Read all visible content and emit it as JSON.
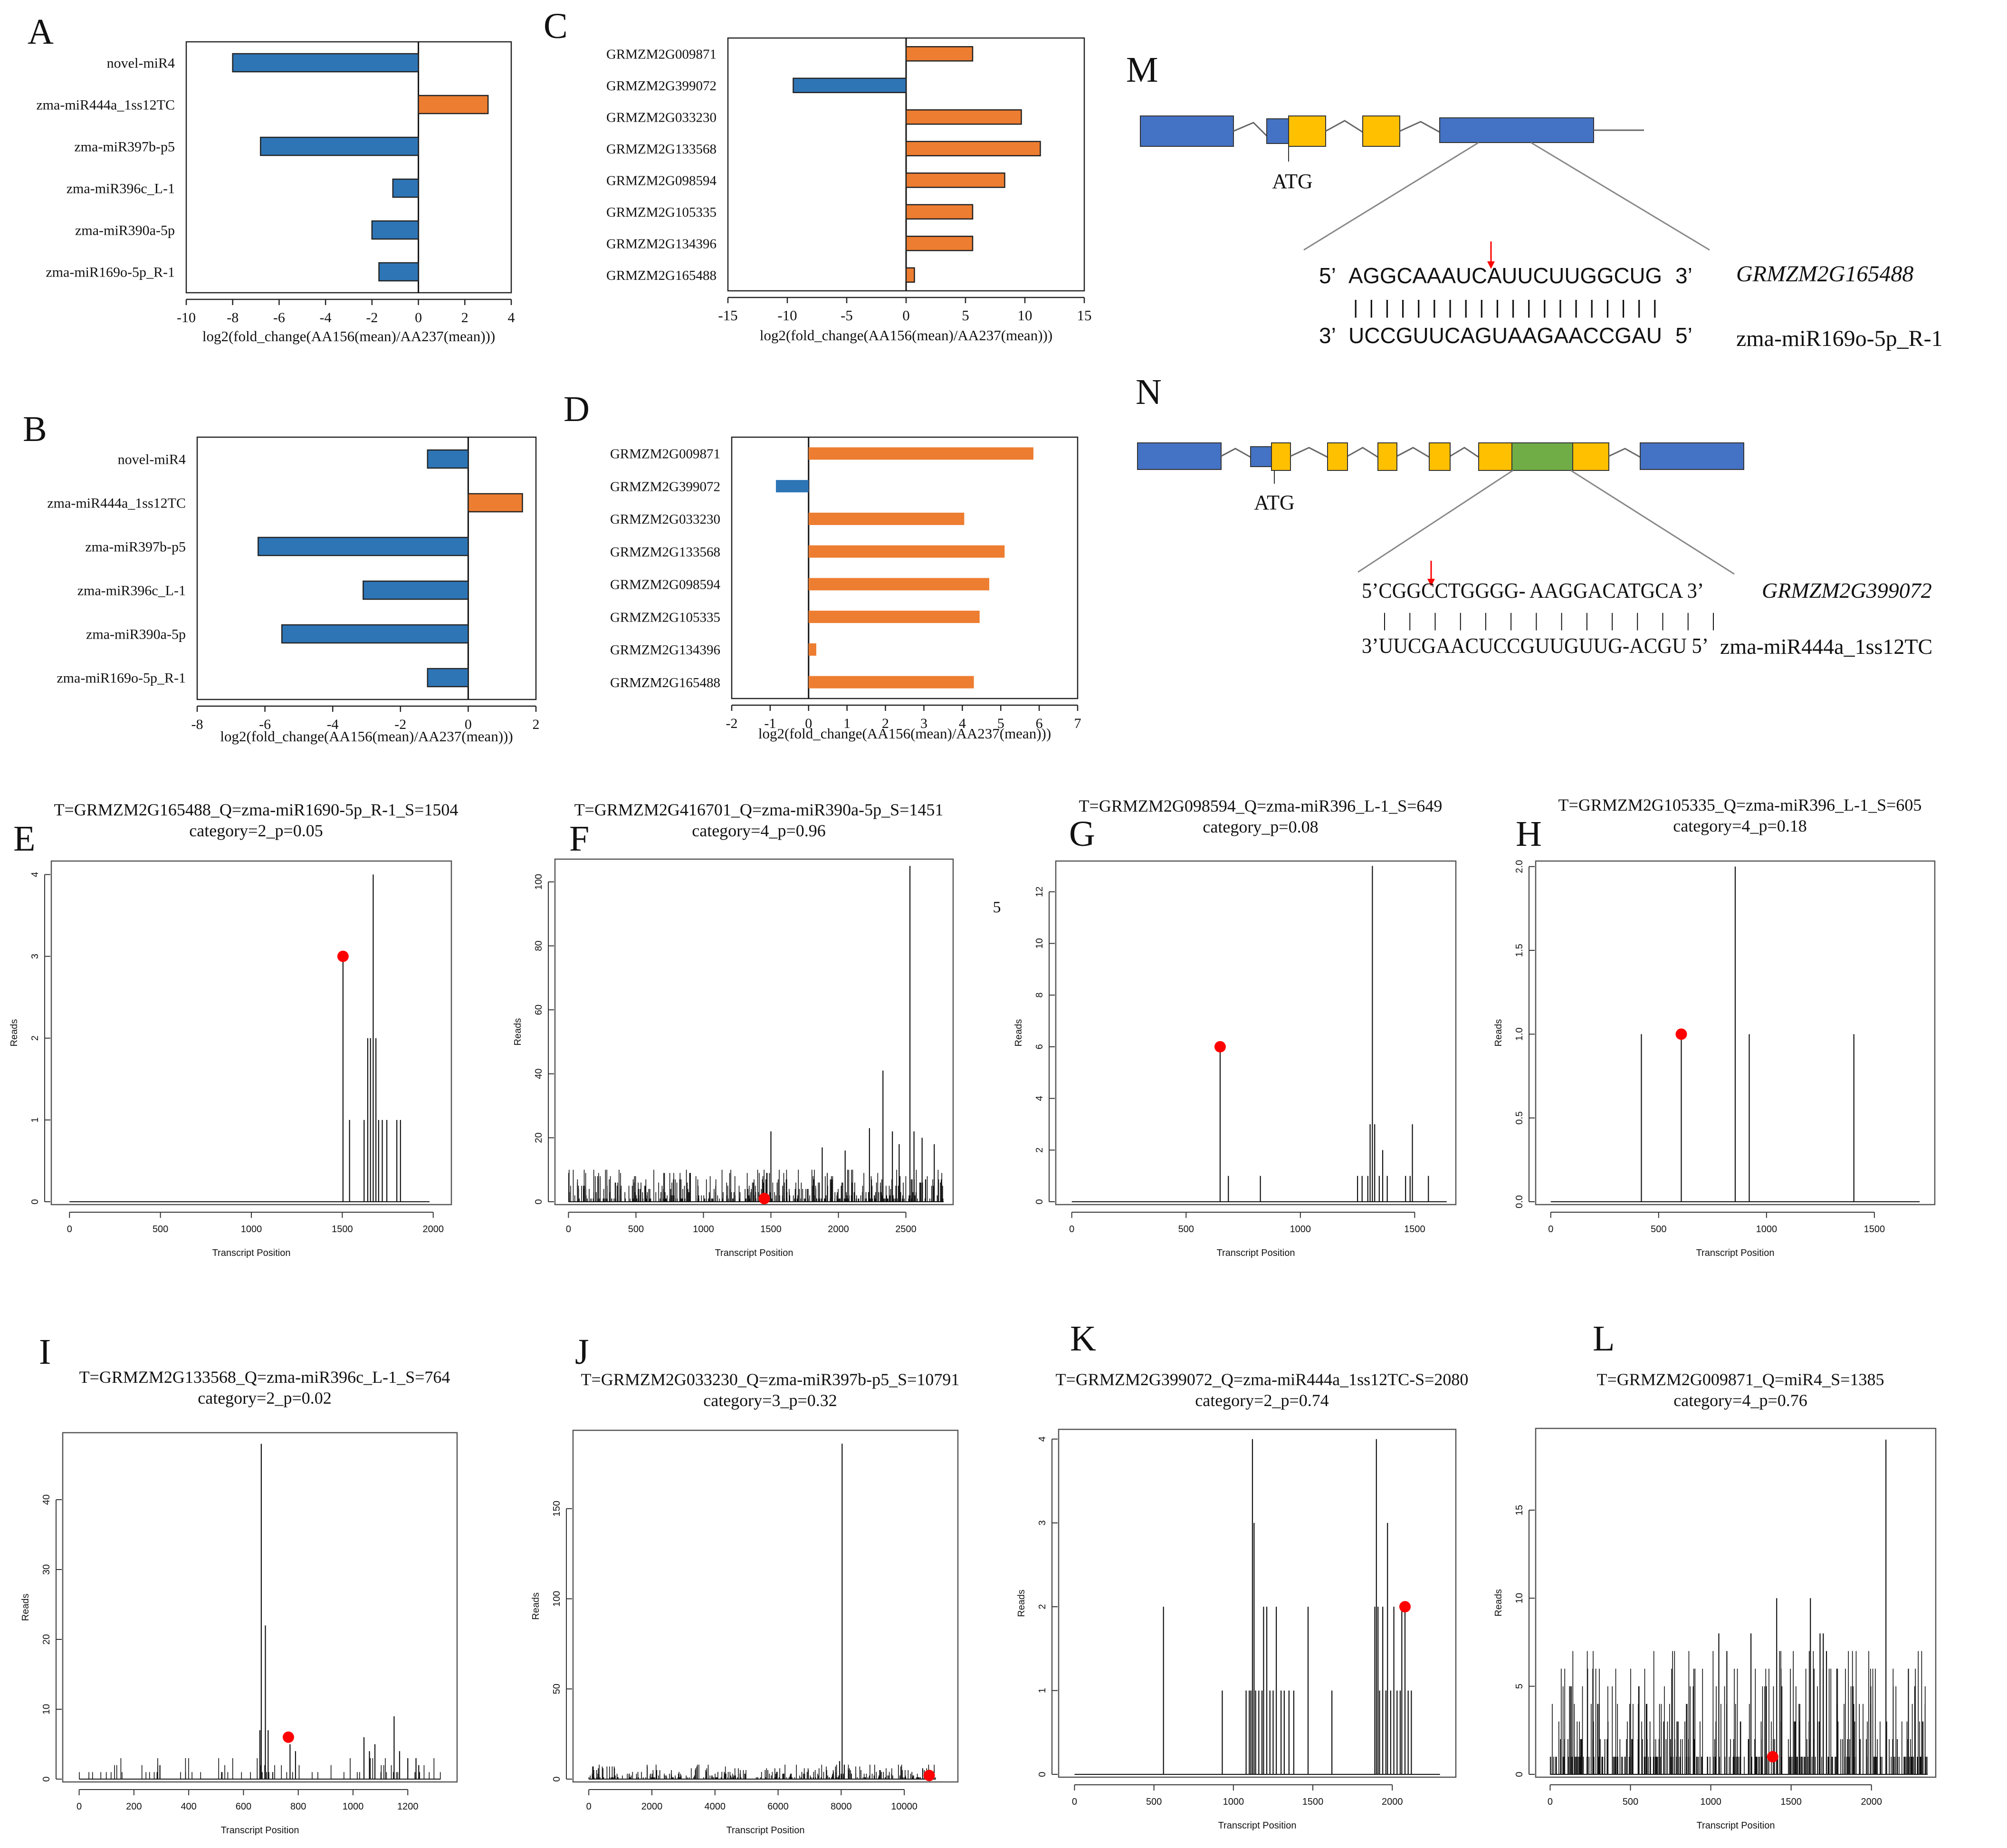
{
  "figure": {
    "bar_xlabel": "log2(fold_change(AA156(mean)/AA237(mean)))",
    "trace_xlabel": "Transcript Position",
    "trace_ylabel": "Reads",
    "stray_label": "5",
    "colors": {
      "up": "#ED7D31",
      "down": "#2E75B6",
      "exon_blue": "#4472C4",
      "exon_yellow": "#FFC000",
      "exon_green": "#70AD47",
      "mark": "#ff0000"
    }
  },
  "chart_data": [
    {
      "panel": "A",
      "type": "bar",
      "orientation": "horizontal",
      "categories": [
        "novel-miR4",
        "zma-miR444a_1ss12TC",
        "zma-miR397b-p5",
        "zma-miR396c_L-1",
        "zma-miR390a-5p",
        "zma-miR169o-5p_R-1"
      ],
      "values": [
        -8,
        3,
        -6.8,
        -1.1,
        -2,
        -1.7
      ],
      "xlim": [
        -10,
        4
      ],
      "ticks": [
        -10,
        -8,
        -6,
        -4,
        -2,
        0,
        2,
        4
      ],
      "xlabel": "log2(fold_change(AA156(mean)/AA237(mean)))",
      "outline": true
    },
    {
      "panel": "B",
      "type": "bar",
      "orientation": "horizontal",
      "categories": [
        "novel-miR4",
        "zma-miR444a_1ss12TC",
        "zma-miR397b-p5",
        "zma-miR396c_L-1",
        "zma-miR390a-5p",
        "zma-miR169o-5p_R-1"
      ],
      "values": [
        -1.2,
        1.6,
        -6.2,
        -3.1,
        -5.5,
        -1.2
      ],
      "xlim": [
        -8,
        2
      ],
      "ticks": [
        -8,
        -6,
        -4,
        -2,
        0,
        2
      ],
      "xlabel": "log2(fold_change(AA156(mean)/AA237(mean)))",
      "outline": true
    },
    {
      "panel": "C",
      "type": "bar",
      "orientation": "horizontal",
      "categories": [
        "GRMZM2G009871",
        "GRMZM2G399072",
        "GRMZM2G033230",
        "GRMZM2G133568",
        "GRMZM2G098594",
        "GRMZM2G105335",
        "GRMZM2G134396",
        "GRMZM2G165488"
      ],
      "values": [
        5.6,
        -9.5,
        9.7,
        11.3,
        8.3,
        5.6,
        5.6,
        0.7
      ],
      "xlim": [
        -15,
        15
      ],
      "ticks": [
        -15,
        -10,
        -5,
        0,
        5,
        10,
        15
      ],
      "xlabel": "log2(fold_change(AA156(mean)/AA237(mean)))",
      "outline": true
    },
    {
      "panel": "D",
      "type": "bar",
      "orientation": "horizontal",
      "categories": [
        "GRMZM2G009871",
        "GRMZM2G399072",
        "GRMZM2G033230",
        "GRMZM2G133568",
        "GRMZM2G098594",
        "GRMZM2G105335",
        "GRMZM2G134396",
        "GRMZM2G165488"
      ],
      "values": [
        5.85,
        -0.85,
        4.05,
        5.1,
        4.7,
        4.45,
        0.2,
        4.3
      ],
      "xlim": [
        -2,
        7
      ],
      "ticks": [
        -2,
        -1,
        0,
        1,
        2,
        3,
        4,
        5,
        6,
        7
      ],
      "xlabel": "log2(fold_change(AA156(mean)/AA237(mean)))",
      "outline": false
    },
    {
      "panel": "E",
      "type": "line",
      "title": "T=GRMZM2G165488_Q=zma-miR1690-5p_R-1_S=1504",
      "subtitle": "category=2_p=0.05",
      "xlabel": "Transcript Position",
      "ylabel": "Reads",
      "xlim": [
        -100,
        2100
      ],
      "ylim": [
        0,
        4.2
      ],
      "xticks": [
        0,
        500,
        1000,
        1500,
        2000
      ],
      "yticks": [
        0,
        1,
        2,
        3,
        4
      ],
      "length": 1980,
      "seed": 5,
      "noise_count": 0,
      "noise_max": 0,
      "peaks": [
        [
          1504,
          3
        ],
        [
          1540,
          1
        ],
        [
          1620,
          1
        ],
        [
          1640,
          2
        ],
        [
          1655,
          2
        ],
        [
          1670,
          4
        ],
        [
          1685,
          2
        ],
        [
          1700,
          1
        ],
        [
          1720,
          1
        ],
        [
          1745,
          1
        ],
        [
          1800,
          1
        ],
        [
          1820,
          1
        ]
      ],
      "mark": [
        1504,
        3
      ]
    },
    {
      "panel": "F",
      "type": "line",
      "title": "T=GRMZM2G416701_Q=zma-miR390a-5p_S=1451",
      "subtitle": "category=4_p=0.96",
      "xlabel": "Transcript Position",
      "ylabel": "Reads",
      "xlim": [
        -100,
        2850
      ],
      "ylim": [
        0,
        108
      ],
      "xticks": [
        0,
        500,
        1000,
        1500,
        2000,
        2500
      ],
      "yticks": [
        0,
        20,
        40,
        60,
        80,
        100
      ],
      "length": 2780,
      "seed": 11,
      "noise_count": 480,
      "noise_max": 10,
      "peaks": [
        [
          1500,
          22
        ],
        [
          1880,
          17
        ],
        [
          2050,
          16
        ],
        [
          2230,
          23
        ],
        [
          2330,
          41
        ],
        [
          2400,
          22
        ],
        [
          2450,
          18
        ],
        [
          2530,
          105
        ],
        [
          2560,
          22
        ],
        [
          2620,
          20
        ],
        [
          2710,
          18
        ]
      ],
      "mark": [
        1451,
        1
      ]
    },
    {
      "panel": "G",
      "type": "line",
      "title": "T=GRMZM2G098594_Q=zma-miR396_L-1_S=649",
      "subtitle": "category_p=0.08",
      "xlabel": "Transcript Position",
      "ylabel": "Reads",
      "xlim": [
        -70,
        1680
      ],
      "ylim": [
        0,
        13.3
      ],
      "xticks": [
        0,
        500,
        1000,
        1500
      ],
      "yticks": [
        0,
        2,
        4,
        6,
        8,
        10,
        12
      ],
      "length": 1640,
      "seed": 3,
      "noise_count": 0,
      "noise_max": 0,
      "peaks": [
        [
          649,
          6
        ],
        [
          685,
          1
        ],
        [
          825,
          1
        ],
        [
          1250,
          1
        ],
        [
          1270,
          1
        ],
        [
          1295,
          1
        ],
        [
          1305,
          3
        ],
        [
          1315,
          13
        ],
        [
          1325,
          3
        ],
        [
          1345,
          1
        ],
        [
          1360,
          2
        ],
        [
          1380,
          1
        ],
        [
          1460,
          1
        ],
        [
          1480,
          1
        ],
        [
          1490,
          3
        ],
        [
          1560,
          1
        ]
      ],
      "mark": [
        649,
        6
      ]
    },
    {
      "panel": "H",
      "type": "line",
      "title": "T=GRMZM2G105335_Q=zma-miR396_L-1_S=605",
      "subtitle": "category=4_p=0.18",
      "xlabel": "Transcript Position",
      "ylabel": "Reads",
      "xlim": [
        -70,
        1780
      ],
      "ylim": [
        0,
        2.05
      ],
      "xticks": [
        0,
        500,
        1000,
        1500
      ],
      "yticks": [
        0.0,
        0.5,
        1.0,
        1.5,
        2.0
      ],
      "length": 1710,
      "seed": 4,
      "noise_count": 0,
      "noise_max": 0,
      "peaks": [
        [
          420,
          1
        ],
        [
          605,
          1
        ],
        [
          855,
          2
        ],
        [
          920,
          1
        ],
        [
          1405,
          1
        ]
      ],
      "mark": [
        605,
        1
      ]
    },
    {
      "panel": "I",
      "type": "line",
      "title": "T=GRMZM2G133568_Q=zma-miR396c_L-1_S=764",
      "subtitle": "category=2_p=0.02",
      "xlabel": "Transcript Position",
      "ylabel": "Reads",
      "xlim": [
        -60,
        1380
      ],
      "ylim": [
        0,
        50
      ],
      "xticks": [
        0,
        200,
        400,
        600,
        800,
        1000,
        1200
      ],
      "yticks": [
        0,
        10,
        20,
        30,
        40
      ],
      "length": 1320,
      "seed": 7,
      "noise_count": 70,
      "noise_max": 3,
      "peaks": [
        [
          295,
          2
        ],
        [
          660,
          7
        ],
        [
          665,
          48
        ],
        [
          680,
          22
        ],
        [
          690,
          7
        ],
        [
          770,
          5
        ],
        [
          790,
          4
        ],
        [
          1040,
          6
        ],
        [
          1060,
          4
        ],
        [
          1080,
          5
        ],
        [
          1150,
          9
        ],
        [
          1170,
          4
        ],
        [
          1200,
          3
        ],
        [
          1230,
          3
        ],
        [
          1240,
          2
        ]
      ],
      "mark": [
        764,
        6
      ]
    },
    {
      "panel": "J",
      "type": "line",
      "title": "T=GRMZM2G033230_Q=zma-miR397b-p5_S=10791",
      "subtitle": "category=3_p=0.32",
      "xlabel": "Transcript Position",
      "ylabel": "Reads",
      "xlim": [
        -500,
        11700
      ],
      "ylim": [
        0,
        195
      ],
      "xticks": [
        0,
        2000,
        4000,
        6000,
        8000,
        10000
      ],
      "yticks": [
        0,
        50,
        100,
        150
      ],
      "length": 11000,
      "seed": 9,
      "noise_count": 330,
      "noise_max": 8,
      "peaks": [
        [
          7950,
          10
        ],
        [
          8030,
          186
        ],
        [
          8100,
          8
        ]
      ],
      "mark": [
        10791,
        2
      ]
    },
    {
      "panel": "K",
      "type": "line",
      "title": "T=GRMZM2G399072_Q=zma-miR444a_1ss12TC-S=2080",
      "subtitle": "category=2_p=0.74",
      "xlabel": "Transcript Position",
      "ylabel": "Reads",
      "xlim": [
        -100,
        2400
      ],
      "ylim": [
        0,
        4.15
      ],
      "xticks": [
        0,
        500,
        1000,
        1500,
        2000
      ],
      "yticks": [
        0,
        1,
        2,
        3,
        4
      ],
      "length": 2300,
      "seed": 13,
      "noise_count": 0,
      "noise_max": 0,
      "peaks": [
        [
          560,
          2
        ],
        [
          930,
          1
        ],
        [
          1080,
          1
        ],
        [
          1100,
          1
        ],
        [
          1110,
          1
        ],
        [
          1120,
          4
        ],
        [
          1130,
          3
        ],
        [
          1140,
          1
        ],
        [
          1160,
          1
        ],
        [
          1180,
          1
        ],
        [
          1190,
          2
        ],
        [
          1210,
          2
        ],
        [
          1230,
          1
        ],
        [
          1250,
          1
        ],
        [
          1270,
          2
        ],
        [
          1300,
          1
        ],
        [
          1320,
          1
        ],
        [
          1350,
          1
        ],
        [
          1380,
          1
        ],
        [
          1470,
          2
        ],
        [
          1620,
          1
        ],
        [
          1890,
          2
        ],
        [
          1900,
          4
        ],
        [
          1910,
          2
        ],
        [
          1920,
          1
        ],
        [
          1940,
          2
        ],
        [
          1960,
          1
        ],
        [
          1970,
          3
        ],
        [
          1990,
          1
        ],
        [
          2010,
          2
        ],
        [
          2030,
          1
        ],
        [
          2050,
          1
        ],
        [
          2060,
          2
        ],
        [
          2080,
          2
        ],
        [
          2100,
          1
        ],
        [
          2120,
          1
        ]
      ],
      "mark": [
        2080,
        2
      ]
    },
    {
      "panel": "L",
      "type": "line",
      "title": "T=GRMZM2G009871_Q=miR4_S=1385",
      "subtitle": "category=4_p=0.76",
      "xlabel": "Transcript Position",
      "ylabel": "Reads",
      "xlim": [
        -90,
        2400
      ],
      "ylim": [
        0,
        19.8
      ],
      "xticks": [
        0,
        500,
        1000,
        1500,
        2000
      ],
      "yticks": [
        0,
        5,
        10,
        15
      ],
      "length": 2350,
      "seed": 17,
      "noise_count": 420,
      "noise_max": 7,
      "peaks": [
        [
          1050,
          8
        ],
        [
          1100,
          7
        ],
        [
          1250,
          8
        ],
        [
          1410,
          10
        ],
        [
          1620,
          10
        ],
        [
          1680,
          8
        ],
        [
          1700,
          8
        ],
        [
          1720,
          7
        ],
        [
          2090,
          19
        ],
        [
          2230,
          6
        ],
        [
          2270,
          5
        ]
      ],
      "mark": [
        1385,
        1
      ]
    }
  ],
  "gene_structures": [
    {
      "panel": "M",
      "atg_label": "ATG",
      "site_five": "5’",
      "site_three": "3’",
      "target_seq": "AGGCAAAUCAUUCUUGGCUG",
      "target_name": "GRMZM2G165488",
      "mirna_five": "3’",
      "mirna_three": "5’",
      "mirna_seq": "UCCGUUCAGUAAGAACCGAU",
      "mirna_name": "zma-miR169o-5p_R-1",
      "pairing": "| | | | | | | | | | | | | | | | | | | |"
    },
    {
      "panel": "N",
      "atg_label": "ATG",
      "target_line": "5’CGGCCTGGGG- AAGGACATGCA 3’",
      "target_name": "GRMZM2G399072",
      "mirna_line": "3’UUCGAACUCCGUUGUUG-ACGU 5’",
      "mirna_name": "zma-miR444a_1ss12TC",
      "pairing": "| |   | | | |   | |   | |   | | | |"
    }
  ]
}
